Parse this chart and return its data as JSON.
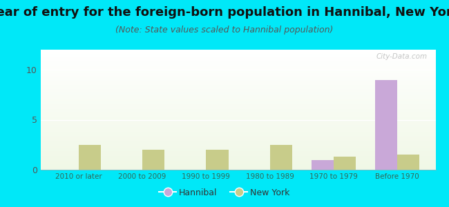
{
  "title": "Year of entry for the foreign-born population in Hannibal, New York",
  "subtitle": "(Note: State values scaled to Hannibal population)",
  "categories": [
    "2010 or later",
    "2000 to 2009",
    "1990 to 1999",
    "1980 to 1989",
    "1970 to 1979",
    "Before 1970"
  ],
  "hannibal_values": [
    0,
    0,
    0,
    0,
    1,
    9
  ],
  "newyork_values": [
    2.5,
    2.0,
    2.0,
    2.5,
    1.3,
    1.5
  ],
  "hannibal_color": "#c9a8d8",
  "newyork_color": "#c8cc8a",
  "background_outer": "#00e8f8",
  "ylim": [
    0,
    12
  ],
  "yticks": [
    0,
    5,
    10
  ],
  "bar_width": 0.35,
  "title_fontsize": 13,
  "subtitle_fontsize": 9
}
